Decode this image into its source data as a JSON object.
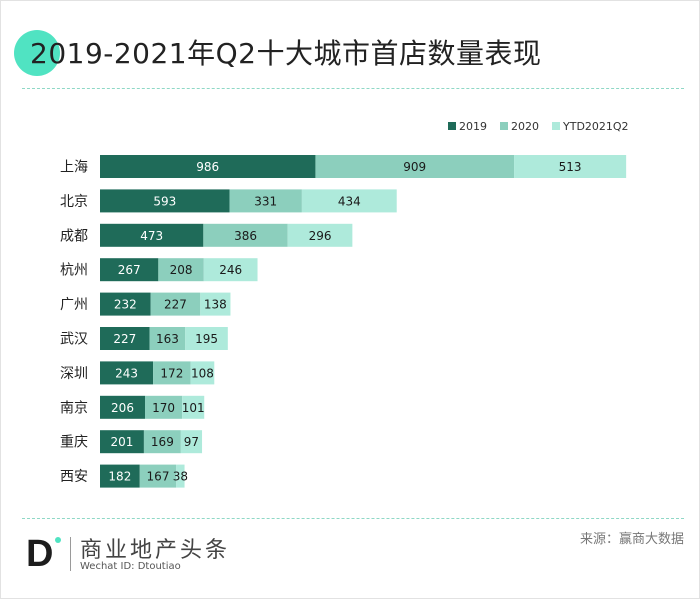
{
  "header": {
    "title": "2019-2021年Q2十大城市首店数量表现"
  },
  "footer": {
    "brand": "商业地产头条",
    "wechat": "Wechat ID: Dtoutiao",
    "source": "来源：赢商大数据",
    "logo_letter": "D"
  },
  "colors": {
    "accent": "#50e3c2",
    "s2019": "#1f6b59",
    "s2020": "#8ccfbd",
    "sytd": "#aeeadb"
  },
  "chart_data": {
    "type": "bar",
    "orientation": "horizontal",
    "stacked": true,
    "categories": [
      "上海",
      "北京",
      "成都",
      "杭州",
      "广州",
      "武汉",
      "深圳",
      "南京",
      "重庆",
      "西安"
    ],
    "series": [
      {
        "name": "2019",
        "values": [
          986,
          593,
          473,
          267,
          232,
          227,
          243,
          206,
          201,
          182
        ]
      },
      {
        "name": "2020",
        "values": [
          909,
          331,
          386,
          208,
          227,
          163,
          172,
          170,
          169,
          167
        ]
      },
      {
        "name": "YTD2021Q2",
        "values": [
          513,
          434,
          296,
          246,
          138,
          195,
          108,
          101,
          97,
          38
        ]
      }
    ],
    "legend": "top-right",
    "grid": false,
    "data_labels": true
  }
}
